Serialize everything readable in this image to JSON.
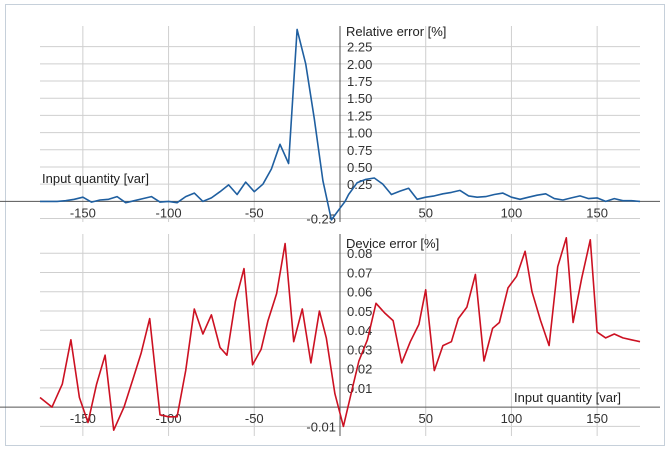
{
  "chart_data": [
    {
      "type": "line",
      "title": "",
      "xlabel": "Input quantity [var]",
      "ylabel": "Relative error [%]",
      "xlim": [
        -175,
        175
      ],
      "ylim": [
        -0.3,
        2.55
      ],
      "x_ticks": [
        -150,
        -100,
        -50,
        50,
        100,
        150
      ],
      "x_tick_labels": [
        "-150",
        "-100",
        "-50",
        "50",
        "100",
        "150"
      ],
      "y_ticks": [
        -0.25,
        0.25,
        0.5,
        0.75,
        1.0,
        1.25,
        1.5,
        1.75,
        2.0,
        2.25
      ],
      "y_tick_labels": [
        "-0.25",
        "0.25",
        "0.50",
        "0.75",
        "1.00",
        "1.25",
        "1.50",
        "1.75",
        "2.00",
        "2.25"
      ],
      "grid": true,
      "colors": {
        "line": "#1f5fa0",
        "ticks": "#1f5fa0"
      },
      "series": [
        {
          "x": [
            -175,
            -170,
            -165,
            -160,
            -155,
            -150,
            -145,
            -140,
            -135,
            -130,
            -125,
            -120,
            -115,
            -110,
            -105,
            -100,
            -95,
            -90,
            -85,
            -80,
            -75,
            -70,
            -65,
            -60,
            -55,
            -50,
            -45,
            -40,
            -35,
            -30,
            -25,
            -20,
            -15,
            -10,
            -5,
            -3,
            0,
            3,
            5,
            10,
            15,
            20,
            25,
            30,
            35,
            40,
            45,
            50,
            55,
            60,
            65,
            70,
            75,
            80,
            85,
            90,
            95,
            100,
            105,
            110,
            115,
            120,
            125,
            130,
            135,
            140,
            145,
            150,
            155,
            160,
            165,
            170,
            175
          ],
          "values": [
            0.0,
            0.0,
            0.0,
            0.01,
            0.03,
            0.06,
            -0.01,
            0.02,
            0.03,
            0.07,
            -0.02,
            0.01,
            0.04,
            0.07,
            -0.01,
            0.0,
            -0.02,
            0.07,
            0.12,
            0.0,
            0.05,
            0.14,
            0.24,
            0.1,
            0.28,
            0.14,
            0.25,
            0.47,
            0.83,
            0.55,
            2.5,
            2.0,
            1.2,
            0.3,
            -0.27,
            -0.2,
            -0.1,
            0.0,
            0.1,
            0.27,
            0.32,
            0.34,
            0.25,
            0.1,
            0.15,
            0.19,
            0.03,
            0.06,
            0.08,
            0.11,
            0.13,
            0.16,
            0.08,
            0.06,
            0.07,
            0.1,
            0.12,
            0.06,
            0.03,
            0.06,
            0.09,
            0.11,
            0.04,
            0.02,
            0.05,
            0.08,
            0.04,
            0.05,
            0.0,
            0.04,
            0.01,
            0.01,
            0.0
          ]
        }
      ]
    },
    {
      "type": "line",
      "title": "",
      "xlabel": "Input quantity [var]",
      "ylabel": "Device error [%]",
      "xlim": [
        -175,
        175
      ],
      "ylim": [
        -0.015,
        0.09
      ],
      "x_ticks": [
        -150,
        -100,
        -50,
        50,
        100,
        150
      ],
      "x_tick_labels": [
        "-150",
        "-100",
        "-50",
        "50",
        "100",
        "150"
      ],
      "y_ticks": [
        -0.01,
        0.01,
        0.02,
        0.03,
        0.04,
        0.05,
        0.06,
        0.07,
        0.08
      ],
      "y_tick_labels": [
        "-0.01",
        "0.01",
        "0.02",
        "0.03",
        "0.04",
        "0.05",
        "0.06",
        "0.07",
        "0.08"
      ],
      "grid": true,
      "colors": {
        "line": "#cc1122",
        "ticks": "#cc1122"
      },
      "series": [
        {
          "x": [
            -175,
            -168,
            -162,
            -157,
            -152,
            -147,
            -142,
            -137,
            -132,
            -126,
            -121,
            -116,
            -111,
            -105,
            -100,
            -95,
            -90,
            -85,
            -80,
            -75,
            -70,
            -66,
            -61,
            -56,
            -51,
            -46,
            -42,
            -37,
            -32,
            -27,
            -22,
            -17,
            -12,
            -8,
            -3,
            2,
            7,
            11,
            16,
            21,
            26,
            31,
            36,
            41,
            46,
            50,
            55,
            60,
            65,
            69,
            74,
            79,
            84,
            89,
            93,
            98,
            103,
            108,
            112,
            117,
            122,
            127,
            132,
            136,
            141,
            146,
            150,
            155,
            160,
            165,
            170,
            175
          ],
          "values": [
            0.005,
            0.0,
            0.012,
            0.035,
            0.005,
            -0.008,
            0.012,
            0.027,
            -0.012,
            0.0,
            0.014,
            0.028,
            0.046,
            -0.004,
            -0.005,
            -0.005,
            0.019,
            0.051,
            0.038,
            0.048,
            0.031,
            0.027,
            0.055,
            0.072,
            0.022,
            0.03,
            0.045,
            0.059,
            0.085,
            0.034,
            0.051,
            0.023,
            0.05,
            0.036,
            0.007,
            -0.01,
            0.009,
            0.024,
            0.035,
            0.054,
            0.049,
            0.045,
            0.023,
            0.034,
            0.043,
            0.061,
            0.019,
            0.032,
            0.034,
            0.046,
            0.052,
            0.069,
            0.024,
            0.041,
            0.044,
            0.062,
            0.068,
            0.081,
            0.06,
            0.045,
            0.032,
            0.073,
            0.088,
            0.044,
            0.067,
            0.087,
            0.039,
            0.036,
            0.038,
            0.036,
            0.035,
            0.034
          ]
        }
      ]
    }
  ]
}
